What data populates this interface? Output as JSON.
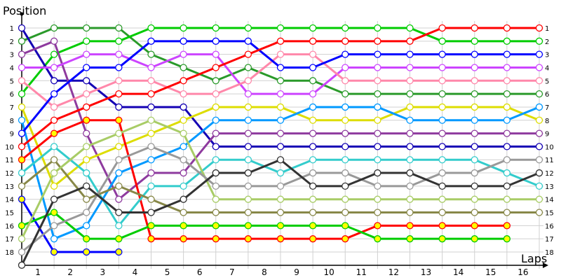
{
  "chart_data": {
    "type": "line",
    "ylabel": "Position",
    "xlabel": "Laps",
    "x_ticks": [
      "1",
      "2",
      "3",
      "4",
      "5",
      "6",
      "7",
      "8",
      "9",
      "10",
      "11",
      "12",
      "13",
      "14",
      "15",
      "16"
    ],
    "y_ticks": [
      "1",
      "2",
      "3",
      "4",
      "5",
      "6",
      "7",
      "8",
      "9",
      "10",
      "11",
      "12",
      "13",
      "14",
      "15",
      "16",
      "17",
      "18"
    ],
    "right_ticks": [
      "1",
      "2",
      "3",
      "4",
      "5",
      "6",
      "7",
      "8",
      "9",
      "10",
      "11",
      "12",
      "13",
      "14",
      "15",
      "16",
      "17",
      "18"
    ],
    "ylim": [
      1,
      19
    ],
    "y_inverted": true,
    "grid": true,
    "x": [
      0,
      1,
      2,
      3,
      4,
      5,
      6,
      7,
      8,
      9,
      10,
      11,
      12,
      13,
      14,
      15,
      16
    ],
    "series": [
      {
        "color": "#2a9a2a",
        "marker_fill": "#ffffff",
        "values": [
          2,
          1,
          1,
          1,
          3,
          4,
          5,
          4,
          5,
          5,
          6,
          6,
          6,
          6,
          6,
          6,
          6
        ]
      },
      {
        "color": "#00cc00",
        "marker_fill": "#ffffff",
        "values": [
          6,
          3,
          2,
          2,
          1,
          1,
          1,
          1,
          1,
          1,
          1,
          1,
          1,
          2,
          2,
          2,
          2
        ]
      },
      {
        "color": "#1400b4",
        "marker_fill": "#ffffff",
        "values": [
          1,
          5,
          5,
          7,
          7,
          7,
          10,
          10,
          10,
          10,
          10,
          10,
          10,
          10,
          10,
          10,
          10
        ]
      },
      {
        "color": "#8e3a9e",
        "marker_fill": "#ffffff",
        "values": [
          3,
          2,
          9,
          14,
          12,
          12,
          9,
          9,
          9,
          9,
          9,
          9,
          9,
          9,
          9,
          9,
          9
        ]
      },
      {
        "color": "#cc44ff",
        "marker_fill": "#ffffff",
        "values": [
          4,
          4,
          3,
          3,
          4,
          3,
          3,
          6,
          6,
          6,
          4,
          4,
          4,
          4,
          4,
          4,
          4
        ]
      },
      {
        "color": "#ff88aa",
        "marker_fill": "#ffffff",
        "values": [
          5,
          7,
          6,
          5,
          5,
          6,
          6,
          5,
          3,
          3,
          5,
          5,
          5,
          5,
          5,
          5,
          5
        ]
      },
      {
        "color": "#dddd00",
        "marker_fill": "#ffffff",
        "values": [
          7,
          13,
          11,
          10,
          9,
          8,
          7,
          7,
          7,
          8,
          8,
          8,
          7,
          7,
          7,
          7,
          8
        ]
      },
      {
        "color": "#0099ff",
        "marker_fill": "#ffffff",
        "values": [
          8,
          17,
          16,
          12,
          11,
          10,
          8,
          8,
          8,
          7,
          7,
          7,
          8,
          8,
          8,
          8,
          7
        ]
      },
      {
        "color": "#0000ff",
        "marker_fill": "#ffffff",
        "values": [
          9,
          6,
          4,
          4,
          2,
          2,
          2,
          2,
          4,
          4,
          3,
          3,
          3,
          3,
          3,
          3,
          3
        ]
      },
      {
        "color": "#ff0000",
        "marker_fill": "#ffffff",
        "values": [
          10,
          8,
          7,
          6,
          6,
          5,
          4,
          3,
          2,
          2,
          2,
          2,
          2,
          1,
          1,
          1,
          1
        ]
      },
      {
        "color": "#ff0000",
        "marker_fill": "#ffff00",
        "values": [
          11,
          9,
          8,
          8,
          17,
          17,
          17,
          17,
          17,
          17,
          17,
          16,
          16,
          16,
          16,
          16,
          null
        ]
      },
      {
        "color": "#33cccc",
        "marker_fill": "#ffffff",
        "values": [
          12,
          10,
          12,
          16,
          13,
          13,
          11,
          11,
          12,
          11,
          11,
          11,
          11,
          11,
          11,
          12,
          13
        ]
      },
      {
        "color": "#888848",
        "marker_fill": "#ffffff",
        "values": [
          13,
          11,
          14,
          13,
          14,
          15,
          15,
          15,
          15,
          15,
          15,
          15,
          15,
          15,
          15,
          15,
          15
        ]
      },
      {
        "color": "#0000ff",
        "marker_fill": "#ffff00",
        "values": [
          14,
          18,
          18,
          18,
          null,
          null,
          null,
          null,
          null,
          null,
          null,
          null,
          null,
          null,
          null,
          null,
          null
        ]
      },
      {
        "color": "#00cc00",
        "marker_fill": "#ffff00",
        "values": [
          16,
          15,
          17,
          17,
          16,
          16,
          16,
          16,
          16,
          16,
          16,
          17,
          17,
          17,
          17,
          17,
          null
        ]
      },
      {
        "color": "#a8cc66",
        "marker_fill": "#ffffff",
        "values": [
          17,
          12,
          10,
          9,
          8,
          9,
          14,
          14,
          14,
          14,
          14,
          14,
          14,
          14,
          14,
          14,
          14
        ]
      },
      {
        "color": "#999999",
        "marker_fill": "#ffffff",
        "values": [
          18,
          16,
          15,
          11,
          10,
          11,
          13,
          13,
          13,
          12,
          12,
          13,
          13,
          12,
          12,
          11,
          11
        ]
      },
      {
        "color": "#333333",
        "marker_fill": "#ffffff",
        "values": [
          19,
          14,
          13,
          15,
          15,
          14,
          12,
          12,
          11,
          13,
          13,
          12,
          12,
          13,
          13,
          13,
          12
        ]
      }
    ]
  }
}
